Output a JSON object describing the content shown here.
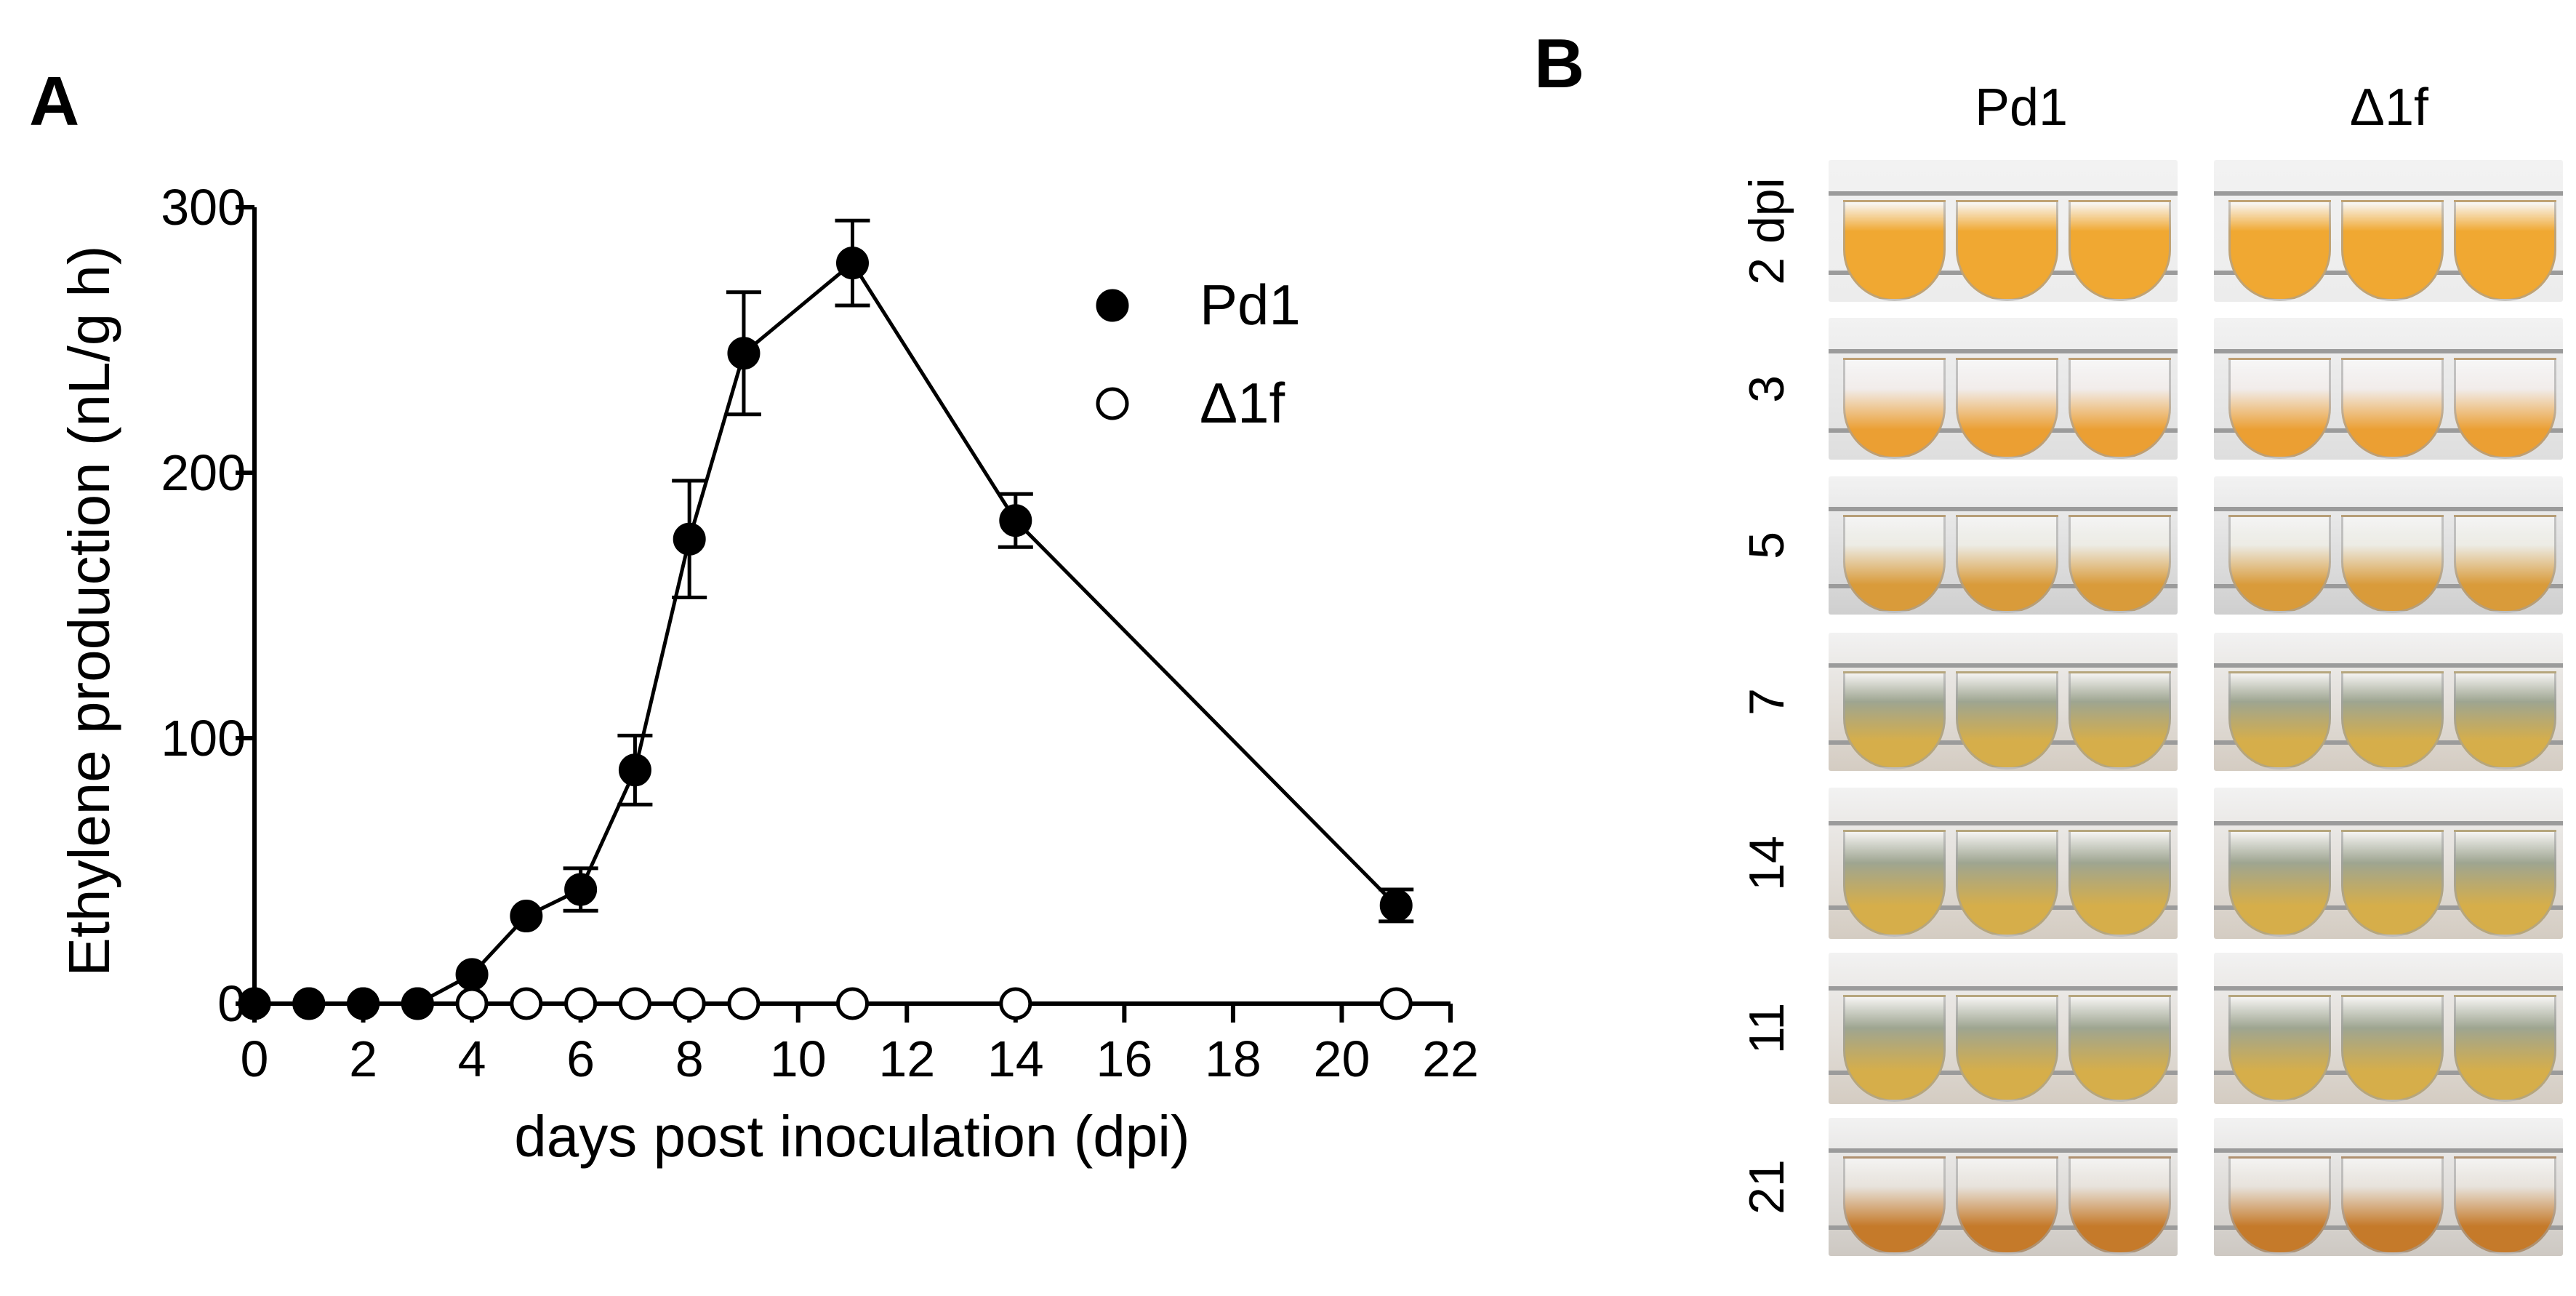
{
  "panel_a": {
    "letter": "A",
    "chart_data": {
      "type": "line",
      "title": "",
      "xlabel": "days post inoculation (dpi)",
      "ylabel": "Ethylene production (nL/g h)",
      "xlim": [
        0,
        22
      ],
      "ylim": [
        0,
        300
      ],
      "x_ticks": [
        0,
        2,
        4,
        6,
        8,
        10,
        12,
        14,
        16,
        18,
        20,
        22
      ],
      "y_ticks": [
        0,
        100,
        200,
        300
      ],
      "legend_position": "top-right",
      "series": [
        {
          "name": "Pd1",
          "marker": "filled-circle",
          "x": [
            0,
            1,
            2,
            3,
            4,
            5,
            6,
            7,
            8,
            9,
            11,
            14,
            21
          ],
          "y": [
            0,
            0,
            0,
            0,
            11,
            33,
            43,
            88,
            175,
            245,
            279,
            182,
            37
          ],
          "err": [
            0,
            0,
            0,
            0,
            0,
            0,
            8,
            13,
            22,
            23,
            16,
            10,
            6
          ]
        },
        {
          "name": "Δ1f",
          "marker": "open-circle",
          "x": [
            0,
            1,
            2,
            3,
            4,
            5,
            6,
            7,
            8,
            9,
            11,
            14,
            21
          ],
          "y": [
            0,
            0,
            0,
            0,
            0,
            0,
            0,
            0,
            0,
            0,
            0,
            0,
            0
          ],
          "err": [
            0,
            0,
            0,
            0,
            0,
            0,
            0,
            0,
            0,
            0,
            0,
            0,
            0
          ]
        }
      ]
    }
  },
  "panel_b": {
    "letter": "B",
    "columns": [
      "Pd1",
      "Δ1f"
    ],
    "rows": [
      {
        "label": "2  dpi",
        "stage": "fresh"
      },
      {
        "label": "3",
        "stage": "early-mycelium"
      },
      {
        "label": "5",
        "stage": "mycelium"
      },
      {
        "label": "7",
        "stage": "sporulating"
      },
      {
        "label": "14",
        "stage": "sporulating"
      },
      {
        "label": "11",
        "stage": "sporulating"
      },
      {
        "label": "21",
        "stage": "late"
      }
    ]
  }
}
